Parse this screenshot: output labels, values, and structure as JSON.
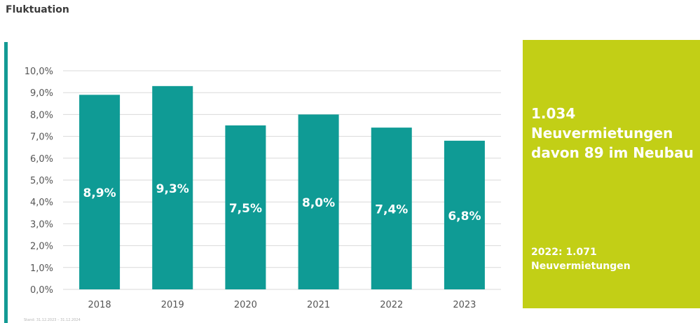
{
  "title": "Fluktuation",
  "chart_data": {
    "type": "bar",
    "categories": [
      "2018",
      "2019",
      "2020",
      "2021",
      "2022",
      "2023"
    ],
    "values": [
      8.9,
      9.3,
      7.5,
      8.0,
      7.4,
      6.8
    ],
    "data_labels": [
      "8,9%",
      "9,3%",
      "7,5%",
      "8,0%",
      "7,4%",
      "6,8%"
    ],
    "y_ticks": [
      "0,0%",
      "1,0%",
      "2,0%",
      "3,0%",
      "4,0%",
      "5,0%",
      "6,0%",
      "7,0%",
      "8,0%",
      "9,0%",
      "10,0%"
    ],
    "ylim": [
      0,
      10
    ],
    "grid": true,
    "bar_color": "#0f9b95"
  },
  "info_box": {
    "count": "1.034",
    "line2": "Neuvermietungen",
    "line3": "davon 89 im Neubau",
    "prev_year": "2022: 1.071",
    "prev_label": "Neuvermietungen",
    "color": "#c2cf16"
  },
  "accent_color": "#139a94",
  "footnote": "Stand: 31.12.2023 – 31.12.2024"
}
